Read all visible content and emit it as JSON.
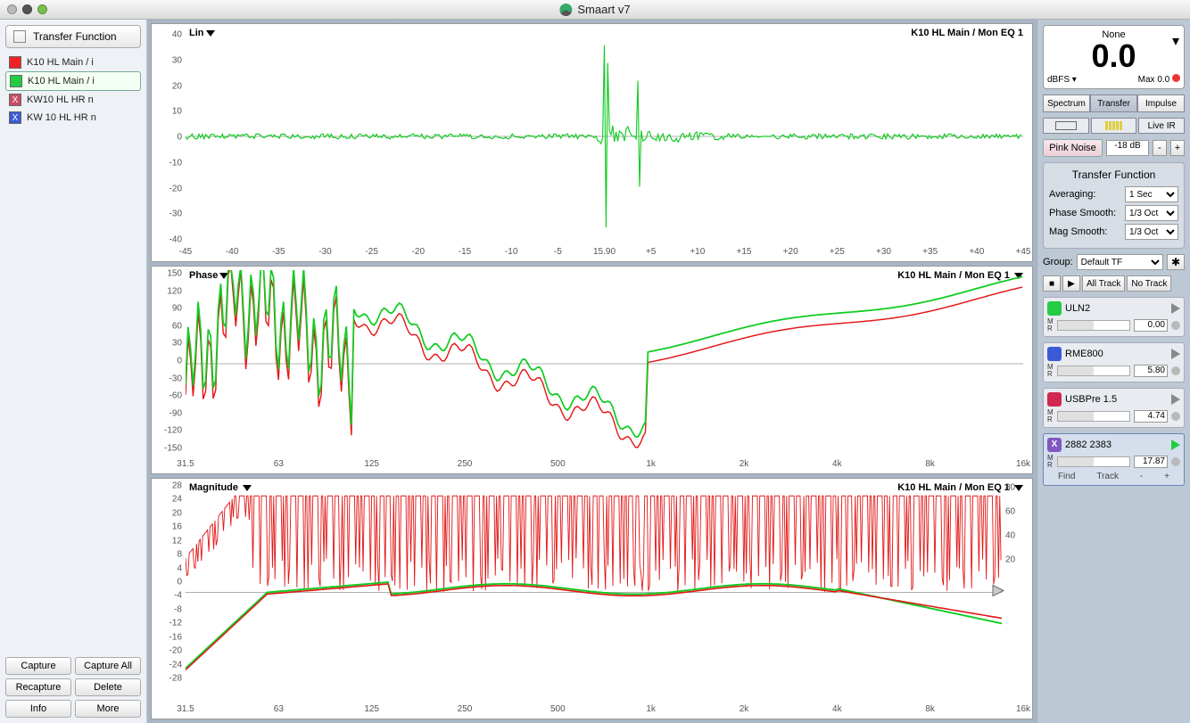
{
  "window": {
    "title": "Smaart v7"
  },
  "left_panel": {
    "header_button": "Transfer Function",
    "traces": [
      {
        "label": "K10 HL Main / i",
        "color": "#e22",
        "x": false,
        "selected": false
      },
      {
        "label": "K10 HL Main / i",
        "color": "#2c4",
        "x": false,
        "selected": true
      },
      {
        "label": "KW10 HL HR n",
        "color": "#c94c66",
        "x": true,
        "selected": false
      },
      {
        "label": "KW 10 HL HR n",
        "color": "#3c5ad6",
        "x": true,
        "selected": false
      }
    ],
    "buttons": {
      "capture": "Capture",
      "capture_all": "Capture All",
      "recapture": "Recapture",
      "delete": "Delete",
      "info": "Info",
      "more": "More"
    }
  },
  "plots": {
    "ir": {
      "title": "Lin",
      "sub": "K10 HL Main / Mon EQ 1",
      "y_ticks": [
        40,
        30,
        20,
        10,
        0,
        -10,
        -20,
        -30,
        -40
      ],
      "x_ticks": [
        "-45",
        "-40",
        "-35",
        "-30",
        "-25",
        "-20",
        "-15",
        "-10",
        "-5",
        "15.90",
        "+5",
        "+10",
        "+15",
        "+20",
        "+25",
        "+30",
        "+35",
        "+40",
        "+45"
      ]
    },
    "phase": {
      "title": "Phase",
      "sub": "K10 HL Main / Mon EQ 1",
      "y_ticks": [
        150,
        120,
        90,
        60,
        30,
        0,
        -30,
        -60,
        -90,
        -120,
        -150
      ],
      "x_ticks": [
        "31.5",
        "63",
        "125",
        "250",
        "500",
        "1k",
        "2k",
        "4k",
        "8k",
        "16k"
      ]
    },
    "mag": {
      "title": "Magnitude",
      "sub": "K10 HL Main / Mon EQ 1",
      "y_ticks": [
        28,
        24,
        20,
        16,
        12,
        8,
        4,
        0,
        -4,
        -8,
        -12,
        -16,
        -20,
        -24,
        -28
      ],
      "y_ticks_r": [
        80,
        60,
        40,
        20
      ],
      "x_ticks": [
        "31.5",
        "63",
        "125",
        "250",
        "500",
        "1k",
        "2k",
        "4k",
        "8k",
        "16k"
      ]
    }
  },
  "right_panel": {
    "meter": {
      "src": "None",
      "value": "0.0",
      "unit": "dBFS",
      "max_label": "Max",
      "max": "0.0"
    },
    "tabs": {
      "spectrum": "Spectrum",
      "transfer": "Transfer",
      "impulse": "Impulse"
    },
    "live_ir": "Live IR",
    "pink_noise": {
      "label": "Pink Noise",
      "level": "-18 dB"
    },
    "tf_panel": {
      "title": "Transfer Function",
      "averaging_label": "Averaging:",
      "averaging": "1 Sec",
      "phase_smooth_label": "Phase Smooth:",
      "phase_smooth": "1/3 Oct",
      "mag_smooth_label": "Mag Smooth:",
      "mag_smooth": "1/3 Oct"
    },
    "group": {
      "label": "Group:",
      "value": "Default TF"
    },
    "track_buttons": {
      "all_track": "All Track",
      "no_track": "No Track"
    },
    "devices": [
      {
        "name": "ULN2",
        "color": "#2c4",
        "value": "0.00",
        "active": false
      },
      {
        "name": "RME800",
        "color": "#3c5ad6",
        "value": "5.80",
        "active": false
      },
      {
        "name": "USBPre 1.5",
        "color": "#d02850",
        "value": "4.74",
        "active": false
      },
      {
        "name": "2882 2383",
        "color": "#8058c0",
        "value": "17.87",
        "active": true,
        "x": true
      }
    ],
    "find_track": {
      "find": "Find",
      "track": "Track",
      "minus": "-",
      "plus": "+"
    }
  },
  "colors": {
    "green": "#10cc20",
    "red": "#e21818",
    "bg_plot": "#ffffff"
  }
}
